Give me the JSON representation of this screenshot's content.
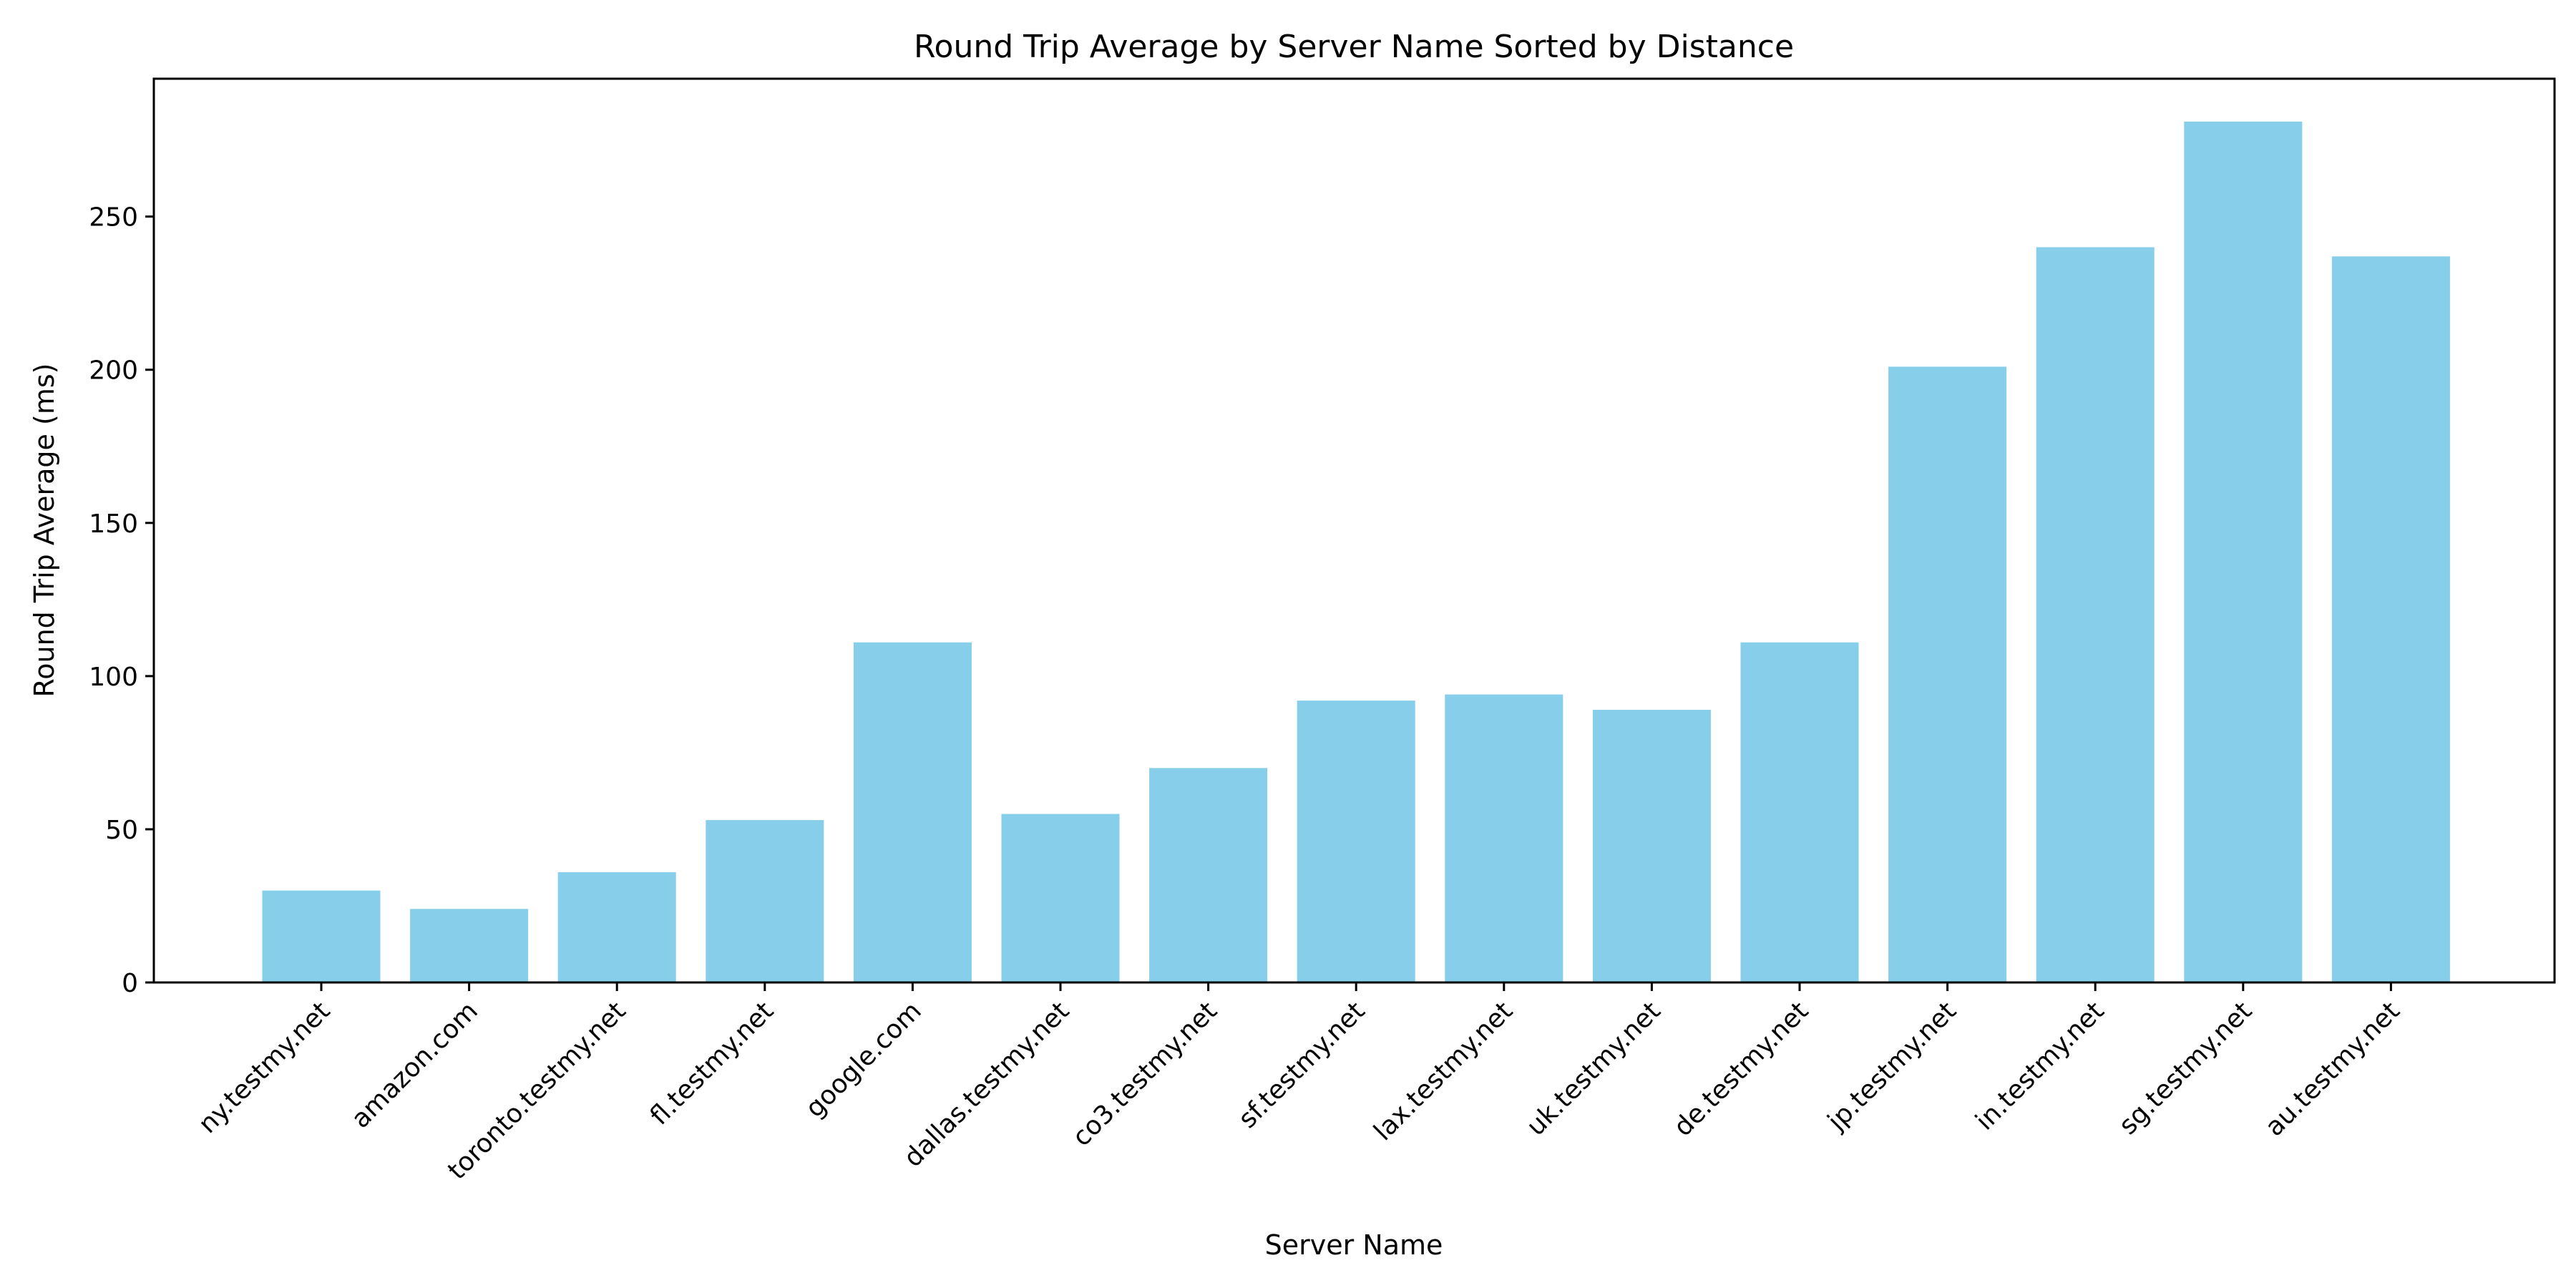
{
  "chart_data": {
    "type": "bar",
    "title": "Round Trip Average by Server Name Sorted by Distance",
    "xlabel": "Server Name",
    "ylabel": "Round Trip Average (ms)",
    "categories": [
      "ny.testmy.net",
      "amazon.com",
      "toronto.testmy.net",
      "fl.testmy.net",
      "google.com",
      "dallas.testmy.net",
      "co3.testmy.net",
      "sf.testmy.net",
      "lax.testmy.net",
      "uk.testmy.net",
      "de.testmy.net",
      "jp.testmy.net",
      "in.testmy.net",
      "sg.testmy.net",
      "au.testmy.net"
    ],
    "values": [
      30,
      24,
      36,
      53,
      111,
      55,
      70,
      92,
      94,
      89,
      111,
      201,
      240,
      281,
      237
    ],
    "ylim": [
      0,
      295
    ],
    "yticks": [
      0,
      50,
      100,
      150,
      200,
      250
    ],
    "bar_color": "#87CEEB",
    "grid": false
  }
}
